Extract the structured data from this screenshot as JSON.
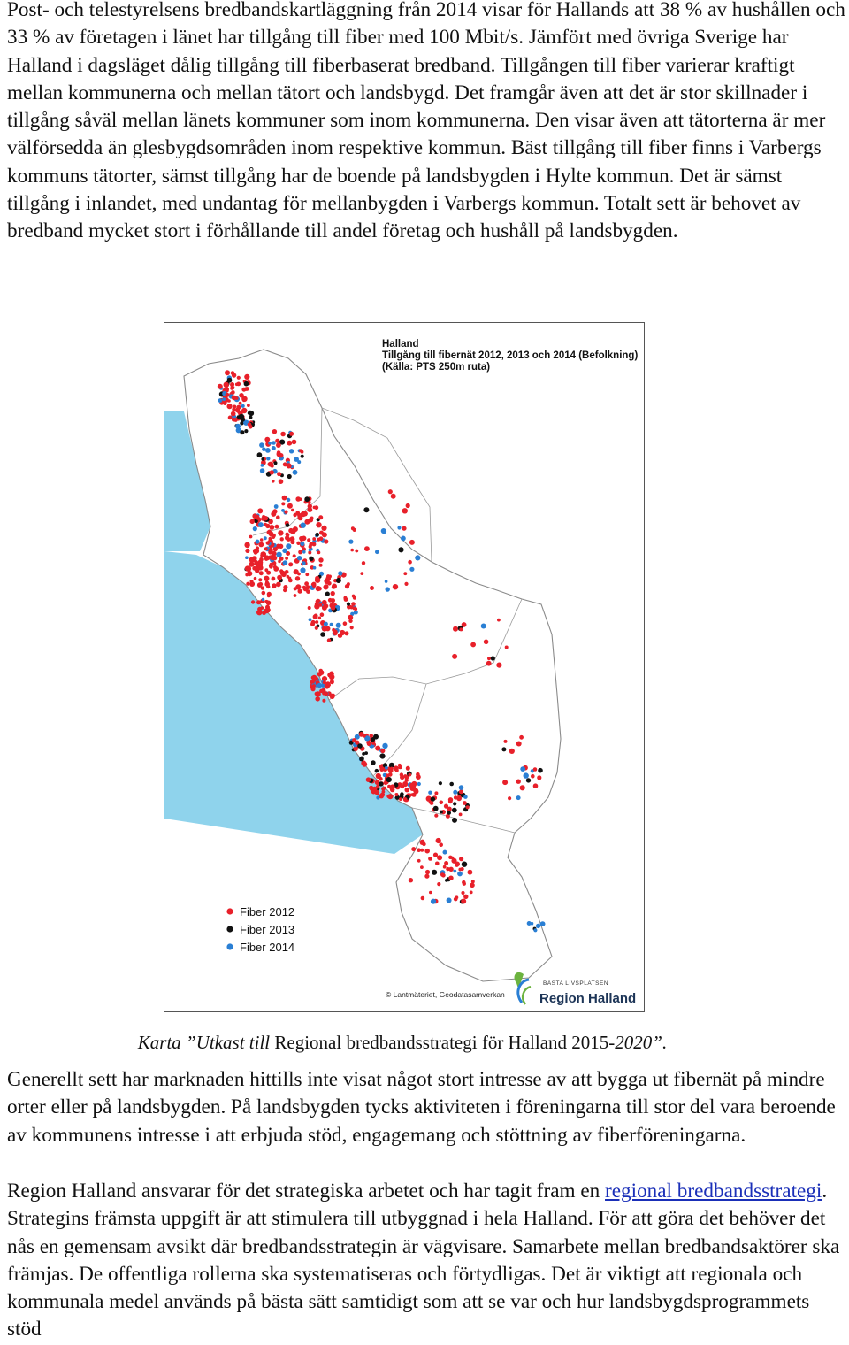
{
  "intro": {
    "text": "Post- och telestyrelsens bredbandskartläggning från 2014 visar för Hallands att 38 % av hushållen och 33 % av företagen i länet har tillgång till fiber med 100 Mbit/s. Jämfört med övriga Sverige har Halland i dagsläget dålig tillgång till fiberbaserat bredband. Tillgången till fiber varierar kraftigt mellan kommunerna och mellan tätort och landsbygd. Det framgår även att det är stor skillnader i tillgång såväl mellan länets kommuner som inom kommunerna. Den visar även att tätorterna är mer välförsedda än glesbygdsområden inom respektive kommun. Bäst tillgång till fiber finns i Varbergs kommuns tätorter, sämst tillgång har de boende på landsbygden i Hylte kommun. Det är sämst tillgång i inlandet, med undantag för mellanbygden i Varbergs kommun.  Totalt sett är behovet av bredband mycket stort i förhållande till andel företag och hushåll på landsbygden."
  },
  "map": {
    "title": "Halland",
    "subtitle": "Tillgång till fibernät 2012, 2013 och 2014 (Befolkning)",
    "source": "(Källa: PTS 250m ruta)",
    "legend": [
      {
        "label": "Fiber 2012",
        "color": "#e8202a"
      },
      {
        "label": "Fiber 2013",
        "color": "#111111"
      },
      {
        "label": "Fiber 2014",
        "color": "#2a7fd4"
      }
    ],
    "credit": "© Lantmäteriet, Geodatasamverkan",
    "logo_top": "BÄSTA LIVSPLATSEN",
    "logo_name": "Region Halland",
    "sea_color": "#8fd3ec"
  },
  "caption": {
    "part1": "Karta ”Utkast till ",
    "part2": "Regional bredbandsstrategi för Halland 2015-",
    "part3": "2020”."
  },
  "body2": {
    "text": "Generellt sett har marknaden hittills inte visat något stort intresse av att bygga ut fibernät på mindre orter eller på landsbygden. På landsbygden tycks aktiviteten i föreningarna till stor del vara beroende av kommunens intresse i att erbjuda stöd, engagemang och stöttning av fiberföreningarna."
  },
  "body3": {
    "before_link": "Region Halland ansvarar för det strategiska arbetet och har tagit fram en ",
    "link_text": "regional bredbandsstrategi",
    "after_link": ". Strategins främsta uppgift är att stimulera till utbyggnad i hela Halland. För att göra det behöver det nås en gemensam avsikt där bredbandsstrategin är vägvisare. Samarbete mellan bredbandsaktörer ska främjas. De offentliga rollerna ska systematiseras och förtydligas. Det är viktigt att regionala och kommunala medel används på bästa sätt samtidigt som att se var och hur landsbygdsprogrammets stöd"
  }
}
